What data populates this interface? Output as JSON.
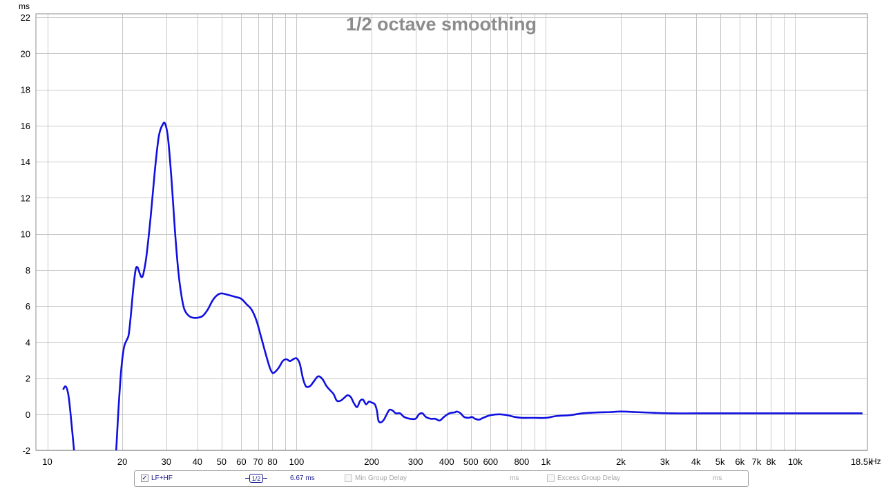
{
  "chart_data": {
    "type": "line",
    "title": "1/2 octave smoothing",
    "ylabel": "ms",
    "xlabel": "Hz",
    "x_scale": "log",
    "xlim": [
      9,
      19500
    ],
    "ylim": [
      -2,
      22.2
    ],
    "grid": true,
    "y_ticks": [
      -2,
      0,
      2,
      4,
      6,
      8,
      10,
      12,
      14,
      16,
      18,
      20,
      22
    ],
    "x_tick_labels": [
      {
        "v": 10,
        "t": "10"
      },
      {
        "v": 20,
        "t": "20"
      },
      {
        "v": 30,
        "t": "30"
      },
      {
        "v": 40,
        "t": "40"
      },
      {
        "v": 50,
        "t": "50"
      },
      {
        "v": 60,
        "t": "60"
      },
      {
        "v": 70,
        "t": "70"
      },
      {
        "v": 80,
        "t": "80"
      },
      {
        "v": 100,
        "t": "100"
      },
      {
        "v": 200,
        "t": "200"
      },
      {
        "v": 300,
        "t": "300"
      },
      {
        "v": 400,
        "t": "400"
      },
      {
        "v": 500,
        "t": "500"
      },
      {
        "v": 600,
        "t": "600"
      },
      {
        "v": 800,
        "t": "800"
      },
      {
        "v": 1000,
        "t": "1k"
      },
      {
        "v": 2000,
        "t": "2k"
      },
      {
        "v": 3000,
        "t": "3k"
      },
      {
        "v": 4000,
        "t": "4k"
      },
      {
        "v": 5000,
        "t": "5k"
      },
      {
        "v": 6000,
        "t": "6k"
      },
      {
        "v": 7000,
        "t": "7k"
      },
      {
        "v": 8000,
        "t": "8k"
      },
      {
        "v": 10000,
        "t": "10k"
      },
      {
        "v": 18500,
        "t": "18.5k"
      }
    ],
    "series": [
      {
        "name": "LF+HF",
        "color": "#1010e0",
        "segments": [
          [
            [
              11.6,
              1.4
            ],
            [
              11.8,
              1.55
            ],
            [
              12.0,
              1.4
            ],
            [
              12.2,
              0.9
            ],
            [
              12.4,
              0.0
            ],
            [
              12.6,
              -1.0
            ],
            [
              12.8,
              -2.0
            ]
          ],
          [
            [
              18.9,
              -2.0
            ],
            [
              19.3,
              0.3
            ],
            [
              19.8,
              2.5
            ],
            [
              20.3,
              3.7
            ],
            [
              20.8,
              4.1
            ],
            [
              21.2,
              4.4
            ],
            [
              21.6,
              5.4
            ],
            [
              22.1,
              6.9
            ],
            [
              22.6,
              8.0
            ],
            [
              23.0,
              8.15
            ],
            [
              23.5,
              7.8
            ],
            [
              23.9,
              7.6
            ],
            [
              24.3,
              7.8
            ],
            [
              25.0,
              8.8
            ],
            [
              26.0,
              11.0
            ],
            [
              27.0,
              13.5
            ],
            [
              28.0,
              15.4
            ],
            [
              29.0,
              16.05
            ],
            [
              29.7,
              16.1
            ],
            [
              30.5,
              15.3
            ],
            [
              31.5,
              13.0
            ],
            [
              32.5,
              10.2
            ],
            [
              33.5,
              8.0
            ],
            [
              34.5,
              6.6
            ],
            [
              35.5,
              5.8
            ],
            [
              37.0,
              5.45
            ],
            [
              38.5,
              5.35
            ],
            [
              40.0,
              5.35
            ],
            [
              42.0,
              5.45
            ],
            [
              44.0,
              5.8
            ],
            [
              46.0,
              6.3
            ],
            [
              48.0,
              6.6
            ],
            [
              50.0,
              6.7
            ],
            [
              53.0,
              6.62
            ],
            [
              57.0,
              6.5
            ],
            [
              60.0,
              6.4
            ],
            [
              63.0,
              6.1
            ],
            [
              66.0,
              5.8
            ],
            [
              69.0,
              5.2
            ],
            [
              72.0,
              4.3
            ],
            [
              75.0,
              3.4
            ],
            [
              78.0,
              2.6
            ],
            [
              80.0,
              2.3
            ],
            [
              82.0,
              2.35
            ],
            [
              85.0,
              2.6
            ],
            [
              88.0,
              2.95
            ],
            [
              91.0,
              3.05
            ],
            [
              94.0,
              2.95
            ],
            [
              97.0,
              3.05
            ],
            [
              100.0,
              3.1
            ],
            [
              103.0,
              2.8
            ],
            [
              106.0,
              2.0
            ],
            [
              109.0,
              1.55
            ],
            [
              113.0,
              1.55
            ],
            [
              117.0,
              1.8
            ],
            [
              122.0,
              2.1
            ],
            [
              127.0,
              1.95
            ],
            [
              132.0,
              1.55
            ],
            [
              137.0,
              1.3
            ],
            [
              141.0,
              1.1
            ],
            [
              145.0,
              0.75
            ],
            [
              150.0,
              0.75
            ],
            [
              155.0,
              0.9
            ],
            [
              160.0,
              1.05
            ],
            [
              165.0,
              0.95
            ],
            [
              170.0,
              0.6
            ],
            [
              175.0,
              0.4
            ],
            [
              180.0,
              0.75
            ],
            [
              185.0,
              0.8
            ],
            [
              190.0,
              0.55
            ],
            [
              195.0,
              0.7
            ],
            [
              200.0,
              0.65
            ],
            [
              206.0,
              0.55
            ],
            [
              210.0,
              0.2
            ],
            [
              213.0,
              -0.35
            ],
            [
              218.0,
              -0.45
            ],
            [
              224.0,
              -0.3
            ],
            [
              230.0,
              0.0
            ],
            [
              236.0,
              0.25
            ],
            [
              243.0,
              0.2
            ],
            [
              250.0,
              0.05
            ],
            [
              260.0,
              0.05
            ],
            [
              270.0,
              -0.15
            ],
            [
              285.0,
              -0.25
            ],
            [
              300.0,
              -0.25
            ],
            [
              310.0,
              0.0
            ],
            [
              320.0,
              0.05
            ],
            [
              330.0,
              -0.15
            ],
            [
              345.0,
              -0.25
            ],
            [
              360.0,
              -0.25
            ],
            [
              375.0,
              -0.35
            ],
            [
              390.0,
              -0.15
            ],
            [
              410.0,
              0.05
            ],
            [
              430.0,
              0.1
            ],
            [
              440.0,
              0.15
            ],
            [
              455.0,
              0.05
            ],
            [
              470.0,
              -0.15
            ],
            [
              490.0,
              -0.2
            ],
            [
              505.0,
              -0.15
            ],
            [
              520.0,
              -0.25
            ],
            [
              540.0,
              -0.3
            ],
            [
              560.0,
              -0.2
            ],
            [
              600.0,
              -0.05
            ],
            [
              650.0,
              0.0
            ],
            [
              700.0,
              -0.05
            ],
            [
              750.0,
              -0.15
            ],
            [
              800.0,
              -0.2
            ],
            [
              850.0,
              -0.2
            ],
            [
              900.0,
              -0.2
            ],
            [
              1000.0,
              -0.2
            ],
            [
              1100.0,
              -0.1
            ],
            [
              1250.0,
              -0.05
            ],
            [
              1400.0,
              0.05
            ],
            [
              1600.0,
              0.1
            ],
            [
              1800.0,
              0.12
            ],
            [
              2000.0,
              0.15
            ],
            [
              2300.0,
              0.12
            ],
            [
              2700.0,
              0.08
            ],
            [
              3200.0,
              0.05
            ],
            [
              4000.0,
              0.05
            ],
            [
              5000.0,
              0.05
            ],
            [
              7000.0,
              0.05
            ],
            [
              10000.0,
              0.05
            ],
            [
              14000.0,
              0.05
            ],
            [
              18500.0,
              0.05
            ]
          ]
        ]
      }
    ]
  },
  "legend": {
    "lf_hf_label": "LF+HF",
    "smoothing_label": "1/2",
    "lf_hf_value": "6.67 ms",
    "min_group_delay_label": "Min Group Delay",
    "min_group_delay_unit": "ms",
    "excess_group_delay_label": "Excess Group Delay",
    "excess_group_delay_unit": "ms",
    "checkmark": "✓"
  }
}
